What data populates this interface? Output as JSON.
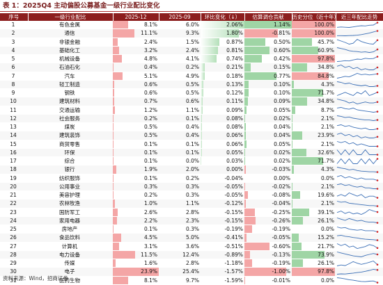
{
  "title": "表 1：2025Q4 主动偏股公募基金一级行业配比变化",
  "headers": [
    "序号",
    "一级行业配比",
    "2025-12",
    "2025-09",
    "环比变化（↓）",
    "估算调仓贡献",
    "历史分位（近十年）",
    "近三年配比走势"
  ],
  "colors": {
    "header_bg": "#8c1d1d",
    "header_text": "#ffffff",
    "title_text": "#7a1f1f",
    "bar_red": "#f4a6a6",
    "bar_green": "#9fd5a5",
    "sparkline": "#3b6fb6",
    "spark_marker": "#d42020"
  },
  "rows": [
    {
      "idx": "1",
      "industry": "有色金属",
      "v2512": "8.1%",
      "v2509": "6.0%",
      "chg": "2.06%",
      "contrib": "1.14%",
      "pct": "100.0%",
      "s2512": 8.1,
      "chgv": 2.06,
      "cv": 1.14,
      "pv": 100.0,
      "spark": [
        4.0,
        4.3,
        4.1,
        3.9,
        4.4,
        5.0,
        5.4,
        5.2,
        5.8,
        6.0,
        8.1
      ]
    },
    {
      "idx": "2",
      "industry": "通信",
      "v2512": "11.1%",
      "v2509": "9.3%",
      "chg": "1.80%",
      "contrib": "-0.81%",
      "pct": "100.0%",
      "s2512": 11.1,
      "chgv": 1.8,
      "cv": -0.81,
      "pv": 100.0,
      "spark": [
        2.0,
        2.1,
        1.8,
        2.2,
        2.5,
        3.0,
        4.1,
        5.5,
        7.0,
        9.3,
        11.1
      ]
    },
    {
      "idx": "3",
      "industry": "非银金融",
      "v2512": "2.4%",
      "v2509": "1.5%",
      "chg": "0.87%",
      "contrib": "0.50%",
      "pct": "45.7%",
      "s2512": 2.4,
      "chgv": 0.87,
      "cv": 0.5,
      "pv": 45.7,
      "spark": [
        2.5,
        2.2,
        1.9,
        1.5,
        1.7,
        2.6,
        2.1,
        1.8,
        1.6,
        1.5,
        2.4
      ]
    },
    {
      "idx": "4",
      "industry": "基础化工",
      "v2512": "3.2%",
      "v2509": "2.4%",
      "chg": "0.81%",
      "contrib": "0.60%",
      "pct": "60.9%",
      "s2512": 3.2,
      "chgv": 0.81,
      "cv": 0.6,
      "pv": 60.9,
      "spark": [
        3.8,
        3.5,
        3.2,
        2.8,
        2.6,
        2.5,
        2.3,
        2.4,
        2.2,
        2.4,
        3.2
      ]
    },
    {
      "idx": "5",
      "industry": "机械设备",
      "v2512": "4.8%",
      "v2509": "4.1%",
      "chg": "0.74%",
      "contrib": "0.42%",
      "pct": "97.8%",
      "s2512": 4.8,
      "chgv": 0.74,
      "cv": 0.42,
      "pv": 97.8,
      "spark": [
        3.0,
        3.1,
        3.3,
        3.2,
        3.6,
        3.9,
        3.8,
        4.2,
        4.0,
        4.1,
        4.8
      ]
    },
    {
      "idx": "6",
      "industry": "石油石化",
      "v2512": "0.4%",
      "v2509": "0.2%",
      "chg": "0.21%",
      "contrib": "0.15%",
      "pct": "34.8%",
      "s2512": 0.4,
      "chgv": 0.21,
      "cv": 0.15,
      "pv": 34.8,
      "spark": [
        0.5,
        0.6,
        0.4,
        0.5,
        0.3,
        0.4,
        0.2,
        0.3,
        0.2,
        0.2,
        0.4
      ]
    },
    {
      "idx": "7",
      "industry": "汽车",
      "v2512": "5.1%",
      "v2509": "4.9%",
      "chg": "0.18%",
      "contrib": "0.77%",
      "pct": "84.8%",
      "s2512": 5.1,
      "chgv": 0.18,
      "cv": 0.77,
      "pv": 84.8,
      "spark": [
        3.5,
        3.8,
        4.2,
        4.0,
        4.6,
        5.3,
        4.8,
        5.0,
        4.7,
        4.9,
        5.1
      ]
    },
    {
      "idx": "8",
      "industry": "轻工制造",
      "v2512": "0.6%",
      "v2509": "0.5%",
      "chg": "0.13%",
      "contrib": "0.10%",
      "pct": "4.3%",
      "s2512": 0.6,
      "chgv": 0.13,
      "cv": 0.1,
      "pv": 4.3,
      "spark": [
        1.2,
        1.1,
        0.9,
        1.0,
        0.8,
        0.7,
        0.6,
        0.7,
        0.5,
        0.5,
        0.6
      ]
    },
    {
      "idx": "9",
      "industry": "钢铁",
      "v2512": "0.6%",
      "v2509": "0.5%",
      "chg": "0.12%",
      "contrib": "0.10%",
      "pct": "71.7%",
      "s2512": 0.6,
      "chgv": 0.12,
      "cv": 0.1,
      "pv": 71.7,
      "spark": [
        0.4,
        0.5,
        0.6,
        0.5,
        0.4,
        0.6,
        0.5,
        0.7,
        0.4,
        0.5,
        0.6
      ]
    },
    {
      "idx": "10",
      "industry": "建筑材料",
      "v2512": "0.7%",
      "v2509": "0.6%",
      "chg": "0.11%",
      "contrib": "0.09%",
      "pct": "34.8%",
      "s2512": 0.7,
      "chgv": 0.11,
      "cv": 0.09,
      "pv": 34.8,
      "spark": [
        1.0,
        0.9,
        0.8,
        0.6,
        0.7,
        0.5,
        0.6,
        0.7,
        0.6,
        0.6,
        0.7
      ]
    },
    {
      "idx": "11",
      "industry": "交通运输",
      "v2512": "1.2%",
      "v2509": "1.1%",
      "chg": "0.09%",
      "contrib": "0.05%",
      "pct": "8.7%",
      "s2512": 1.2,
      "chgv": 0.09,
      "cv": 0.05,
      "pv": 8.7,
      "spark": [
        1.8,
        1.9,
        1.7,
        1.6,
        1.8,
        1.5,
        1.4,
        1.3,
        1.2,
        1.1,
        1.2
      ]
    },
    {
      "idx": "12",
      "industry": "社会服务",
      "v2512": "0.2%",
      "v2509": "0.1%",
      "chg": "0.08%",
      "contrib": "0.02%",
      "pct": "2.1%",
      "s2512": 0.2,
      "chgv": 0.08,
      "cv": 0.02,
      "pv": 2.1,
      "spark": [
        0.9,
        0.8,
        0.6,
        0.7,
        0.5,
        0.4,
        0.3,
        0.2,
        0.2,
        0.1,
        0.2
      ]
    },
    {
      "idx": "13",
      "industry": "煤炭",
      "v2512": "0.5%",
      "v2509": "0.4%",
      "chg": "0.08%",
      "contrib": "0.04%",
      "pct": "2.1%",
      "s2512": 0.5,
      "chgv": 0.08,
      "cv": 0.04,
      "pv": 2.1,
      "spark": [
        0.9,
        1.0,
        0.8,
        0.9,
        0.7,
        0.6,
        0.5,
        0.6,
        0.4,
        0.4,
        0.5
      ]
    },
    {
      "idx": "14",
      "industry": "建筑装饰",
      "v2512": "0.5%",
      "v2509": "0.4%",
      "chg": "0.06%",
      "contrib": "0.04%",
      "pct": "23.9%",
      "s2512": 0.5,
      "chgv": 0.06,
      "cv": 0.04,
      "pv": 23.9,
      "spark": [
        0.7,
        0.8,
        0.6,
        0.7,
        0.5,
        0.6,
        0.4,
        0.5,
        0.4,
        0.4,
        0.5
      ]
    },
    {
      "idx": "15",
      "industry": "商贸零售",
      "v2512": "0.1%",
      "v2509": "0.1%",
      "chg": "0.06%",
      "contrib": "0.05%",
      "pct": "2.1%",
      "s2512": 0.1,
      "chgv": 0.06,
      "cv": 0.05,
      "pv": 2.1,
      "spark": [
        0.5,
        0.4,
        0.5,
        0.3,
        0.4,
        0.2,
        0.3,
        0.2,
        0.1,
        0.1,
        0.1
      ]
    },
    {
      "idx": "16",
      "industry": "环保",
      "v2512": "0.1%",
      "v2509": "0.1%",
      "chg": "0.05%",
      "contrib": "0.02%",
      "pct": "32.6%",
      "s2512": 0.1,
      "chgv": 0.05,
      "cv": 0.02,
      "pv": 32.6,
      "spark": [
        0.2,
        0.1,
        0.2,
        0.1,
        0.2,
        0.1,
        0.1,
        0.2,
        0.1,
        0.1,
        0.1
      ]
    },
    {
      "idx": "17",
      "industry": "综合",
      "v2512": "0.1%",
      "v2509": "0.0%",
      "chg": "0.03%",
      "contrib": "0.02%",
      "pct": "71.7%",
      "s2512": 0.1,
      "chgv": 0.03,
      "cv": 0.02,
      "pv": 71.7,
      "spark": [
        0.0,
        0.1,
        0.0,
        0.1,
        0.0,
        0.0,
        0.1,
        0.0,
        0.1,
        0.0,
        0.1
      ]
    },
    {
      "idx": "18",
      "industry": "银行",
      "v2512": "1.9%",
      "v2509": "2.0%",
      "chg": "0.00%",
      "contrib": "-0.03%",
      "pct": "4.3%",
      "s2512": 1.9,
      "chgv": 0.0,
      "cv": -0.03,
      "pv": 4.3,
      "spark": [
        3.5,
        3.2,
        3.0,
        2.6,
        2.8,
        2.4,
        2.2,
        2.1,
        2.0,
        2.0,
        1.9
      ]
    },
    {
      "idx": "19",
      "industry": "纺织服饰",
      "v2512": "0.1%",
      "v2509": "0.2%",
      "chg": "-0.04%",
      "contrib": "0.00%",
      "pct": "0.0%",
      "s2512": 0.1,
      "chgv": -0.04,
      "cv": 0.0,
      "pv": 0.0,
      "spark": [
        0.4,
        0.5,
        0.3,
        0.4,
        0.3,
        0.2,
        0.3,
        0.2,
        0.2,
        0.2,
        0.1
      ]
    },
    {
      "idx": "20",
      "industry": "公用事业",
      "v2512": "0.3%",
      "v2509": "0.3%",
      "chg": "-0.05%",
      "contrib": "-0.02%",
      "pct": "2.1%",
      "s2512": 0.3,
      "chgv": -0.05,
      "cv": -0.02,
      "pv": 2.1,
      "spark": [
        0.8,
        0.9,
        0.7,
        0.8,
        0.6,
        0.5,
        0.6,
        0.4,
        0.4,
        0.3,
        0.3
      ]
    },
    {
      "idx": "21",
      "industry": "美容护理",
      "v2512": "0.2%",
      "v2509": "0.3%",
      "chg": "-0.05%",
      "contrib": "-0.08%",
      "pct": "19.6%",
      "s2512": 0.2,
      "chgv": -0.05,
      "cv": -0.08,
      "pv": 19.6,
      "spark": [
        0.3,
        0.4,
        0.3,
        0.5,
        0.4,
        0.3,
        0.4,
        0.2,
        0.3,
        0.3,
        0.2
      ]
    },
    {
      "idx": "22",
      "industry": "农林牧渔",
      "v2512": "1.0%",
      "v2509": "1.1%",
      "chg": "-0.12%",
      "contrib": "-0.04%",
      "pct": "2.1%",
      "s2512": 1.0,
      "chgv": -0.12,
      "cv": -0.04,
      "pv": 2.1,
      "spark": [
        2.0,
        1.8,
        1.9,
        1.6,
        1.5,
        1.4,
        1.3,
        1.2,
        1.1,
        1.1,
        1.0
      ]
    },
    {
      "idx": "23",
      "industry": "国防军工",
      "v2512": "2.6%",
      "v2509": "2.8%",
      "chg": "-0.15%",
      "contrib": "-0.25%",
      "pct": "39.1%",
      "s2512": 2.6,
      "chgv": -0.15,
      "cv": -0.25,
      "pv": 39.1,
      "spark": [
        2.5,
        2.8,
        2.3,
        2.6,
        2.2,
        2.4,
        2.1,
        2.5,
        3.1,
        2.8,
        2.6
      ]
    },
    {
      "idx": "24",
      "industry": "家用电器",
      "v2512": "2.2%",
      "v2509": "2.3%",
      "chg": "-0.15%",
      "contrib": "-0.26%",
      "pct": "26.1%",
      "s2512": 2.2,
      "chgv": -0.15,
      "cv": -0.26,
      "pv": 26.1,
      "spark": [
        3.0,
        2.8,
        2.6,
        2.9,
        2.7,
        2.5,
        2.6,
        2.4,
        2.3,
        2.3,
        2.2
      ]
    },
    {
      "idx": "25",
      "industry": "房地产",
      "v2512": "0.1%",
      "v2509": "0.3%",
      "chg": "-0.19%",
      "contrib": "-0.19%",
      "pct": "0.0%",
      "s2512": 0.1,
      "chgv": -0.19,
      "cv": -0.19,
      "pv": 0.0,
      "spark": [
        1.0,
        0.8,
        0.9,
        0.6,
        0.5,
        0.4,
        0.5,
        0.3,
        0.3,
        0.3,
        0.1
      ]
    },
    {
      "idx": "26",
      "industry": "食品饮料",
      "v2512": "4.5%",
      "v2509": "5.0%",
      "chg": "-0.41%",
      "contrib": "-0.05%",
      "pct": "15.2%",
      "s2512": 4.5,
      "chgv": -0.41,
      "cv": -0.05,
      "pv": 15.2,
      "spark": [
        9.0,
        9.5,
        8.5,
        8.0,
        7.2,
        6.8,
        6.0,
        5.5,
        5.2,
        5.0,
        4.5
      ]
    },
    {
      "idx": "27",
      "industry": "计算机",
      "v2512": "3.1%",
      "v2509": "3.6%",
      "chg": "-0.51%",
      "contrib": "-0.60%",
      "pct": "21.7%",
      "s2512": 3.1,
      "chgv": -0.51,
      "cv": -0.6,
      "pv": 21.7,
      "spark": [
        4.0,
        3.6,
        3.9,
        3.3,
        3.5,
        3.0,
        3.2,
        3.4,
        3.8,
        3.6,
        3.1
      ]
    },
    {
      "idx": "28",
      "industry": "电力设备",
      "v2512": "11.5%",
      "v2509": "12.4%",
      "chg": "-0.89%",
      "contrib": "-0.13%",
      "pct": "73.9%",
      "s2512": 11.5,
      "chgv": -0.89,
      "cv": -0.13,
      "pv": 73.9,
      "spark": [
        14.0,
        13.0,
        12.0,
        11.0,
        10.0,
        9.5,
        9.0,
        10.5,
        11.5,
        12.4,
        11.5
      ]
    },
    {
      "idx": "29",
      "industry": "传媒",
      "v2512": "1.6%",
      "v2509": "2.8%",
      "chg": "-1.18%",
      "contrib": "-0.19%",
      "pct": "26.1%",
      "s2512": 1.6,
      "chgv": -1.18,
      "cv": -0.19,
      "pv": 26.1,
      "spark": [
        1.2,
        1.5,
        1.3,
        1.9,
        2.6,
        2.1,
        1.7,
        2.0,
        2.4,
        2.8,
        1.6
      ]
    },
    {
      "idx": "30",
      "industry": "电子",
      "v2512": "23.9%",
      "v2509": "25.4%",
      "chg": "-1.57%",
      "contrib": "-1.00%",
      "pct": "97.8%",
      "s2512": 23.9,
      "chgv": -1.57,
      "cv": -1.0,
      "pv": 97.8,
      "spark": [
        12.0,
        13.0,
        12.5,
        14.0,
        15.0,
        16.5,
        18.0,
        20.0,
        22.5,
        25.4,
        23.9
      ]
    },
    {
      "idx": "31",
      "industry": "医药生物",
      "v2512": "8.1%",
      "v2509": "9.7%",
      "chg": "-1.59%",
      "contrib": "-0.01%",
      "pct": "0.0%",
      "s2512": 8.1,
      "chgv": -1.59,
      "cv": -0.01,
      "pv": 0.0,
      "spark": [
        13.0,
        12.5,
        11.8,
        11.0,
        10.5,
        9.8,
        9.2,
        9.0,
        9.5,
        9.7,
        8.1
      ]
    }
  ],
  "source": "资料来源：Wind，招商证券"
}
